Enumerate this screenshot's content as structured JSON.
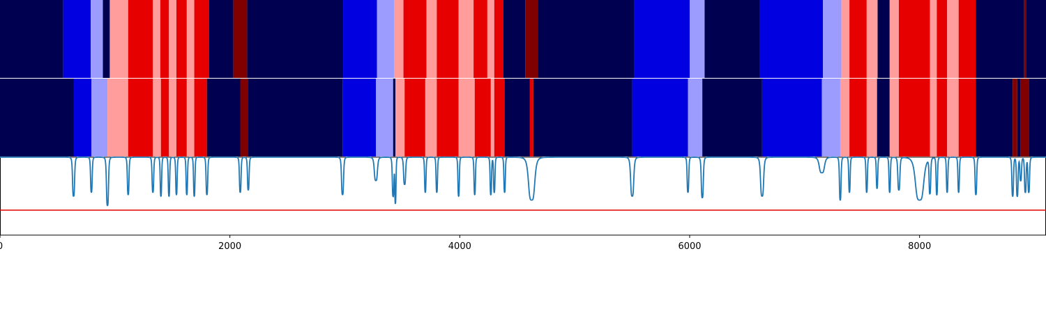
{
  "chart_data": {
    "type": "heatmap",
    "title": "",
    "xlabel": "",
    "ylabel": "",
    "xlim": [
      0,
      9100
    ],
    "x_ticks": [
      "0",
      "2000",
      "4000",
      "6000",
      "8000"
    ],
    "x_tick_values": [
      0,
      2000,
      4000,
      6000,
      8000
    ],
    "colors": {
      "dark_navy": "#000050",
      "blue": "#0000e0",
      "light_blue": "#9c9cff",
      "pink": "#ff9c9c",
      "red": "#e60000",
      "dark_red": "#800000",
      "curve": "#1f77b4",
      "threshold": "#e60000"
    },
    "rows": [
      {
        "segments": [
          {
            "start": 0,
            "end": 550,
            "color": "dark_navy"
          },
          {
            "start": 550,
            "end": 790,
            "color": "blue"
          },
          {
            "start": 790,
            "end": 895,
            "color": "light_blue"
          },
          {
            "start": 895,
            "end": 955,
            "color": "dark_navy"
          },
          {
            "start": 955,
            "end": 1115,
            "color": "pink"
          },
          {
            "start": 1115,
            "end": 1330,
            "color": "red"
          },
          {
            "start": 1330,
            "end": 1395,
            "color": "pink"
          },
          {
            "start": 1395,
            "end": 1470,
            "color": "red"
          },
          {
            "start": 1470,
            "end": 1535,
            "color": "pink"
          },
          {
            "start": 1535,
            "end": 1625,
            "color": "red"
          },
          {
            "start": 1625,
            "end": 1690,
            "color": "pink"
          },
          {
            "start": 1690,
            "end": 1820,
            "color": "red"
          },
          {
            "start": 1820,
            "end": 2030,
            "color": "dark_navy"
          },
          {
            "start": 2030,
            "end": 2150,
            "color": "dark_red"
          },
          {
            "start": 2150,
            "end": 2985,
            "color": "dark_navy"
          },
          {
            "start": 2985,
            "end": 3280,
            "color": "blue"
          },
          {
            "start": 3280,
            "end": 3430,
            "color": "light_blue"
          },
          {
            "start": 3430,
            "end": 3510,
            "color": "pink"
          },
          {
            "start": 3510,
            "end": 3710,
            "color": "red"
          },
          {
            "start": 3710,
            "end": 3800,
            "color": "pink"
          },
          {
            "start": 3800,
            "end": 3990,
            "color": "red"
          },
          {
            "start": 3990,
            "end": 4120,
            "color": "pink"
          },
          {
            "start": 4120,
            "end": 4240,
            "color": "red"
          },
          {
            "start": 4240,
            "end": 4300,
            "color": "pink"
          },
          {
            "start": 4300,
            "end": 4380,
            "color": "red"
          },
          {
            "start": 4380,
            "end": 4570,
            "color": "dark_navy"
          },
          {
            "start": 4570,
            "end": 4680,
            "color": "dark_red"
          },
          {
            "start": 4680,
            "end": 5520,
            "color": "dark_navy"
          },
          {
            "start": 5520,
            "end": 6000,
            "color": "blue"
          },
          {
            "start": 6000,
            "end": 6130,
            "color": "light_blue"
          },
          {
            "start": 6130,
            "end": 6610,
            "color": "dark_navy"
          },
          {
            "start": 6610,
            "end": 7160,
            "color": "blue"
          },
          {
            "start": 7160,
            "end": 7320,
            "color": "light_blue"
          },
          {
            "start": 7320,
            "end": 7390,
            "color": "pink"
          },
          {
            "start": 7390,
            "end": 7540,
            "color": "red"
          },
          {
            "start": 7540,
            "end": 7635,
            "color": "pink"
          },
          {
            "start": 7635,
            "end": 7740,
            "color": "dark_navy"
          },
          {
            "start": 7740,
            "end": 7820,
            "color": "pink"
          },
          {
            "start": 7820,
            "end": 8090,
            "color": "red"
          },
          {
            "start": 8090,
            "end": 8150,
            "color": "pink"
          },
          {
            "start": 8150,
            "end": 8240,
            "color": "red"
          },
          {
            "start": 8240,
            "end": 8340,
            "color": "pink"
          },
          {
            "start": 8340,
            "end": 8490,
            "color": "red"
          },
          {
            "start": 8490,
            "end": 8910,
            "color": "dark_navy"
          },
          {
            "start": 8910,
            "end": 8930,
            "color": "dark_red"
          },
          {
            "start": 8930,
            "end": 9100,
            "color": "dark_navy"
          }
        ]
      },
      {
        "segments": [
          {
            "start": 0,
            "end": 640,
            "color": "dark_navy"
          },
          {
            "start": 640,
            "end": 795,
            "color": "blue"
          },
          {
            "start": 795,
            "end": 935,
            "color": "light_blue"
          },
          {
            "start": 935,
            "end": 1115,
            "color": "pink"
          },
          {
            "start": 1115,
            "end": 1330,
            "color": "red"
          },
          {
            "start": 1330,
            "end": 1400,
            "color": "pink"
          },
          {
            "start": 1400,
            "end": 1470,
            "color": "red"
          },
          {
            "start": 1470,
            "end": 1535,
            "color": "pink"
          },
          {
            "start": 1535,
            "end": 1625,
            "color": "red"
          },
          {
            "start": 1625,
            "end": 1690,
            "color": "pink"
          },
          {
            "start": 1690,
            "end": 1800,
            "color": "red"
          },
          {
            "start": 1800,
            "end": 2090,
            "color": "dark_navy"
          },
          {
            "start": 2090,
            "end": 2160,
            "color": "dark_red"
          },
          {
            "start": 2160,
            "end": 2980,
            "color": "dark_navy"
          },
          {
            "start": 2980,
            "end": 3270,
            "color": "blue"
          },
          {
            "start": 3270,
            "end": 3420,
            "color": "light_blue"
          },
          {
            "start": 3420,
            "end": 3440,
            "color": "dark_navy"
          },
          {
            "start": 3440,
            "end": 3520,
            "color": "pink"
          },
          {
            "start": 3520,
            "end": 3700,
            "color": "red"
          },
          {
            "start": 3700,
            "end": 3800,
            "color": "pink"
          },
          {
            "start": 3800,
            "end": 3990,
            "color": "red"
          },
          {
            "start": 3990,
            "end": 4130,
            "color": "pink"
          },
          {
            "start": 4130,
            "end": 4270,
            "color": "red"
          },
          {
            "start": 4270,
            "end": 4300,
            "color": "pink"
          },
          {
            "start": 4300,
            "end": 4390,
            "color": "red"
          },
          {
            "start": 4390,
            "end": 4610,
            "color": "dark_navy"
          },
          {
            "start": 4610,
            "end": 4640,
            "color": "red"
          },
          {
            "start": 4640,
            "end": 5500,
            "color": "dark_navy"
          },
          {
            "start": 5500,
            "end": 5985,
            "color": "blue"
          },
          {
            "start": 5985,
            "end": 6110,
            "color": "light_blue"
          },
          {
            "start": 6110,
            "end": 6630,
            "color": "dark_navy"
          },
          {
            "start": 6630,
            "end": 7150,
            "color": "blue"
          },
          {
            "start": 7150,
            "end": 7310,
            "color": "light_blue"
          },
          {
            "start": 7310,
            "end": 7390,
            "color": "pink"
          },
          {
            "start": 7390,
            "end": 7540,
            "color": "red"
          },
          {
            "start": 7540,
            "end": 7630,
            "color": "pink"
          },
          {
            "start": 7630,
            "end": 7740,
            "color": "dark_navy"
          },
          {
            "start": 7740,
            "end": 7820,
            "color": "pink"
          },
          {
            "start": 7820,
            "end": 8090,
            "color": "red"
          },
          {
            "start": 8090,
            "end": 8150,
            "color": "pink"
          },
          {
            "start": 8150,
            "end": 8240,
            "color": "red"
          },
          {
            "start": 8240,
            "end": 8340,
            "color": "pink"
          },
          {
            "start": 8340,
            "end": 8490,
            "color": "red"
          },
          {
            "start": 8490,
            "end": 8810,
            "color": "dark_navy"
          },
          {
            "start": 8810,
            "end": 8850,
            "color": "dark_red"
          },
          {
            "start": 8850,
            "end": 8880,
            "color": "dark_navy"
          },
          {
            "start": 8880,
            "end": 8950,
            "color": "dark_red"
          },
          {
            "start": 8950,
            "end": 9100,
            "color": "dark_navy"
          }
        ]
      }
    ],
    "line": {
      "ylim": [
        -1,
        0
      ],
      "baseline": 0,
      "threshold": -0.68,
      "dips": [
        [
          640,
          -0.5,
          10
        ],
        [
          795,
          -0.45,
          8
        ],
        [
          935,
          -0.62,
          10
        ],
        [
          1115,
          -0.48,
          8
        ],
        [
          1330,
          -0.45,
          8
        ],
        [
          1400,
          -0.5,
          7
        ],
        [
          1470,
          -0.5,
          7
        ],
        [
          1535,
          -0.48,
          7
        ],
        [
          1625,
          -0.48,
          7
        ],
        [
          1690,
          -0.5,
          7
        ],
        [
          1800,
          -0.48,
          8
        ],
        [
          2090,
          -0.45,
          8
        ],
        [
          2160,
          -0.42,
          8
        ],
        [
          2980,
          -0.48,
          10
        ],
        [
          3270,
          -0.3,
          15
        ],
        [
          3420,
          -0.5,
          8
        ],
        [
          3440,
          -0.58,
          6
        ],
        [
          3520,
          -0.35,
          10
        ],
        [
          3700,
          -0.45,
          7
        ],
        [
          3800,
          -0.45,
          7
        ],
        [
          3990,
          -0.5,
          7
        ],
        [
          4130,
          -0.48,
          7
        ],
        [
          4270,
          -0.48,
          7
        ],
        [
          4300,
          -0.45,
          7
        ],
        [
          4390,
          -0.45,
          7
        ],
        [
          4625,
          -0.55,
          30
        ],
        [
          5500,
          -0.5,
          15
        ],
        [
          5985,
          -0.45,
          8
        ],
        [
          6110,
          -0.52,
          10
        ],
        [
          6630,
          -0.5,
          15
        ],
        [
          7150,
          -0.2,
          25
        ],
        [
          7310,
          -0.55,
          8
        ],
        [
          7390,
          -0.45,
          7
        ],
        [
          7540,
          -0.45,
          7
        ],
        [
          7630,
          -0.4,
          7
        ],
        [
          7740,
          -0.45,
          7
        ],
        [
          7820,
          -0.42,
          10
        ],
        [
          8000,
          -0.55,
          40
        ],
        [
          8090,
          -0.45,
          8
        ],
        [
          8150,
          -0.48,
          7
        ],
        [
          8240,
          -0.45,
          7
        ],
        [
          8340,
          -0.45,
          7
        ],
        [
          8490,
          -0.48,
          8
        ],
        [
          8810,
          -0.5,
          8
        ],
        [
          8850,
          -0.5,
          8
        ],
        [
          8880,
          -0.3,
          8
        ],
        [
          8920,
          -0.45,
          8
        ],
        [
          8950,
          -0.45,
          8
        ]
      ]
    }
  }
}
